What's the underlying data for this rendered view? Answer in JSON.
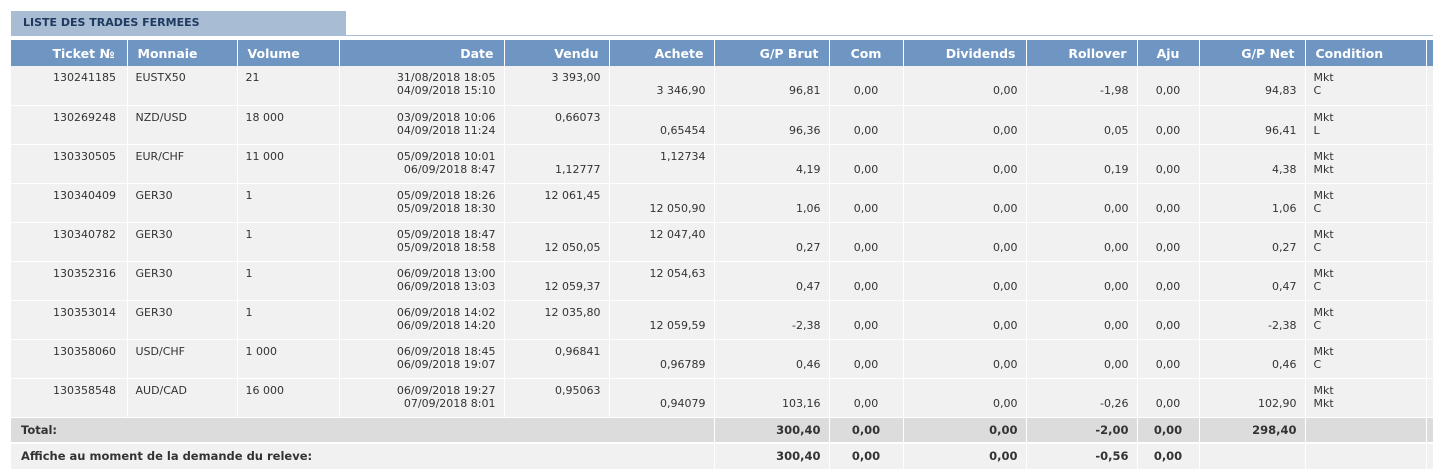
{
  "section_title": "LISTE DES TRADES FERMEES",
  "columns": [
    "Ticket №",
    "Monnaie",
    "Volume",
    "Date",
    "Vendu",
    "Achete",
    "G/P Brut",
    "Com",
    "Dividends",
    "Rollover",
    "Aju",
    "G/P Net",
    "Condition"
  ],
  "rows": [
    {
      "ticket": "130241185",
      "monnaie": "EUSTX50",
      "volume": "21",
      "date1": "31/08/2018 18:05",
      "date2": "04/09/2018 15:10",
      "vendu1": "3 393,00",
      "vendu2": "",
      "achete1": "",
      "achete2": "3 346,90",
      "gp_brut": "96,81",
      "com": "0,00",
      "dividends": "0,00",
      "rollover": "-1,98",
      "aju": "0,00",
      "gp_net": "94,83",
      "cond1": "Mkt",
      "cond2": "C"
    },
    {
      "ticket": "130269248",
      "monnaie": "NZD/USD",
      "volume": "18 000",
      "date1": "03/09/2018 10:06",
      "date2": "04/09/2018 11:24",
      "vendu1": "0,66073",
      "vendu2": "",
      "achete1": "",
      "achete2": "0,65454",
      "gp_brut": "96,36",
      "com": "0,00",
      "dividends": "0,00",
      "rollover": "0,05",
      "aju": "0,00",
      "gp_net": "96,41",
      "cond1": "Mkt",
      "cond2": "L"
    },
    {
      "ticket": "130330505",
      "monnaie": "EUR/CHF",
      "volume": "11 000",
      "date1": "05/09/2018 10:01",
      "date2": "06/09/2018 8:47",
      "vendu1": "",
      "vendu2": "1,12777",
      "achete1": "1,12734",
      "achete2": "",
      "gp_brut": "4,19",
      "com": "0,00",
      "dividends": "0,00",
      "rollover": "0,19",
      "aju": "0,00",
      "gp_net": "4,38",
      "cond1": "Mkt",
      "cond2": "Mkt"
    },
    {
      "ticket": "130340409",
      "monnaie": "GER30",
      "volume": "1",
      "date1": "05/09/2018 18:26",
      "date2": "05/09/2018 18:30",
      "vendu1": "12 061,45",
      "vendu2": "",
      "achete1": "",
      "achete2": "12 050,90",
      "gp_brut": "1,06",
      "com": "0,00",
      "dividends": "0,00",
      "rollover": "0,00",
      "aju": "0,00",
      "gp_net": "1,06",
      "cond1": "Mkt",
      "cond2": "C"
    },
    {
      "ticket": "130340782",
      "monnaie": "GER30",
      "volume": "1",
      "date1": "05/09/2018 18:47",
      "date2": "05/09/2018 18:58",
      "vendu1": "",
      "vendu2": "12 050,05",
      "achete1": "12 047,40",
      "achete2": "",
      "gp_brut": "0,27",
      "com": "0,00",
      "dividends": "0,00",
      "rollover": "0,00",
      "aju": "0,00",
      "gp_net": "0,27",
      "cond1": "Mkt",
      "cond2": "C"
    },
    {
      "ticket": "130352316",
      "monnaie": "GER30",
      "volume": "1",
      "date1": "06/09/2018 13:00",
      "date2": "06/09/2018 13:03",
      "vendu1": "",
      "vendu2": "12 059,37",
      "achete1": "12 054,63",
      "achete2": "",
      "gp_brut": "0,47",
      "com": "0,00",
      "dividends": "0,00",
      "rollover": "0,00",
      "aju": "0,00",
      "gp_net": "0,47",
      "cond1": "Mkt",
      "cond2": "C"
    },
    {
      "ticket": "130353014",
      "monnaie": "GER30",
      "volume": "1",
      "date1": "06/09/2018 14:02",
      "date2": "06/09/2018 14:20",
      "vendu1": "12 035,80",
      "vendu2": "",
      "achete1": "",
      "achete2": "12 059,59",
      "gp_brut": "-2,38",
      "com": "0,00",
      "dividends": "0,00",
      "rollover": "0,00",
      "aju": "0,00",
      "gp_net": "-2,38",
      "cond1": "Mkt",
      "cond2": "C"
    },
    {
      "ticket": "130358060",
      "monnaie": "USD/CHF",
      "volume": "1 000",
      "date1": "06/09/2018 18:45",
      "date2": "06/09/2018 19:07",
      "vendu1": "0,96841",
      "vendu2": "",
      "achete1": "",
      "achete2": "0,96789",
      "gp_brut": "0,46",
      "com": "0,00",
      "dividends": "0,00",
      "rollover": "0,00",
      "aju": "0,00",
      "gp_net": "0,46",
      "cond1": "Mkt",
      "cond2": "C"
    },
    {
      "ticket": "130358548",
      "monnaie": "AUD/CAD",
      "volume": "16 000",
      "date1": "06/09/2018 19:27",
      "date2": "07/09/2018 8:01",
      "vendu1": "0,95063",
      "vendu2": "",
      "achete1": "",
      "achete2": "0,94079",
      "gp_brut": "103,16",
      "com": "0,00",
      "dividends": "0,00",
      "rollover": "-0,26",
      "aju": "0,00",
      "gp_net": "102,90",
      "cond1": "Mkt",
      "cond2": "Mkt"
    }
  ],
  "total": {
    "label": "Total:",
    "gp_brut": "300,40",
    "com": "0,00",
    "dividends": "0,00",
    "rollover": "-2,00",
    "aju": "0,00",
    "gp_net": "298,40"
  },
  "affiche": {
    "label": "Affiche au moment de la demande du releve:",
    "gp_brut": "300,40",
    "com": "0,00",
    "dividends": "0,00",
    "rollover": "-0,56",
    "aju": "0,00"
  }
}
